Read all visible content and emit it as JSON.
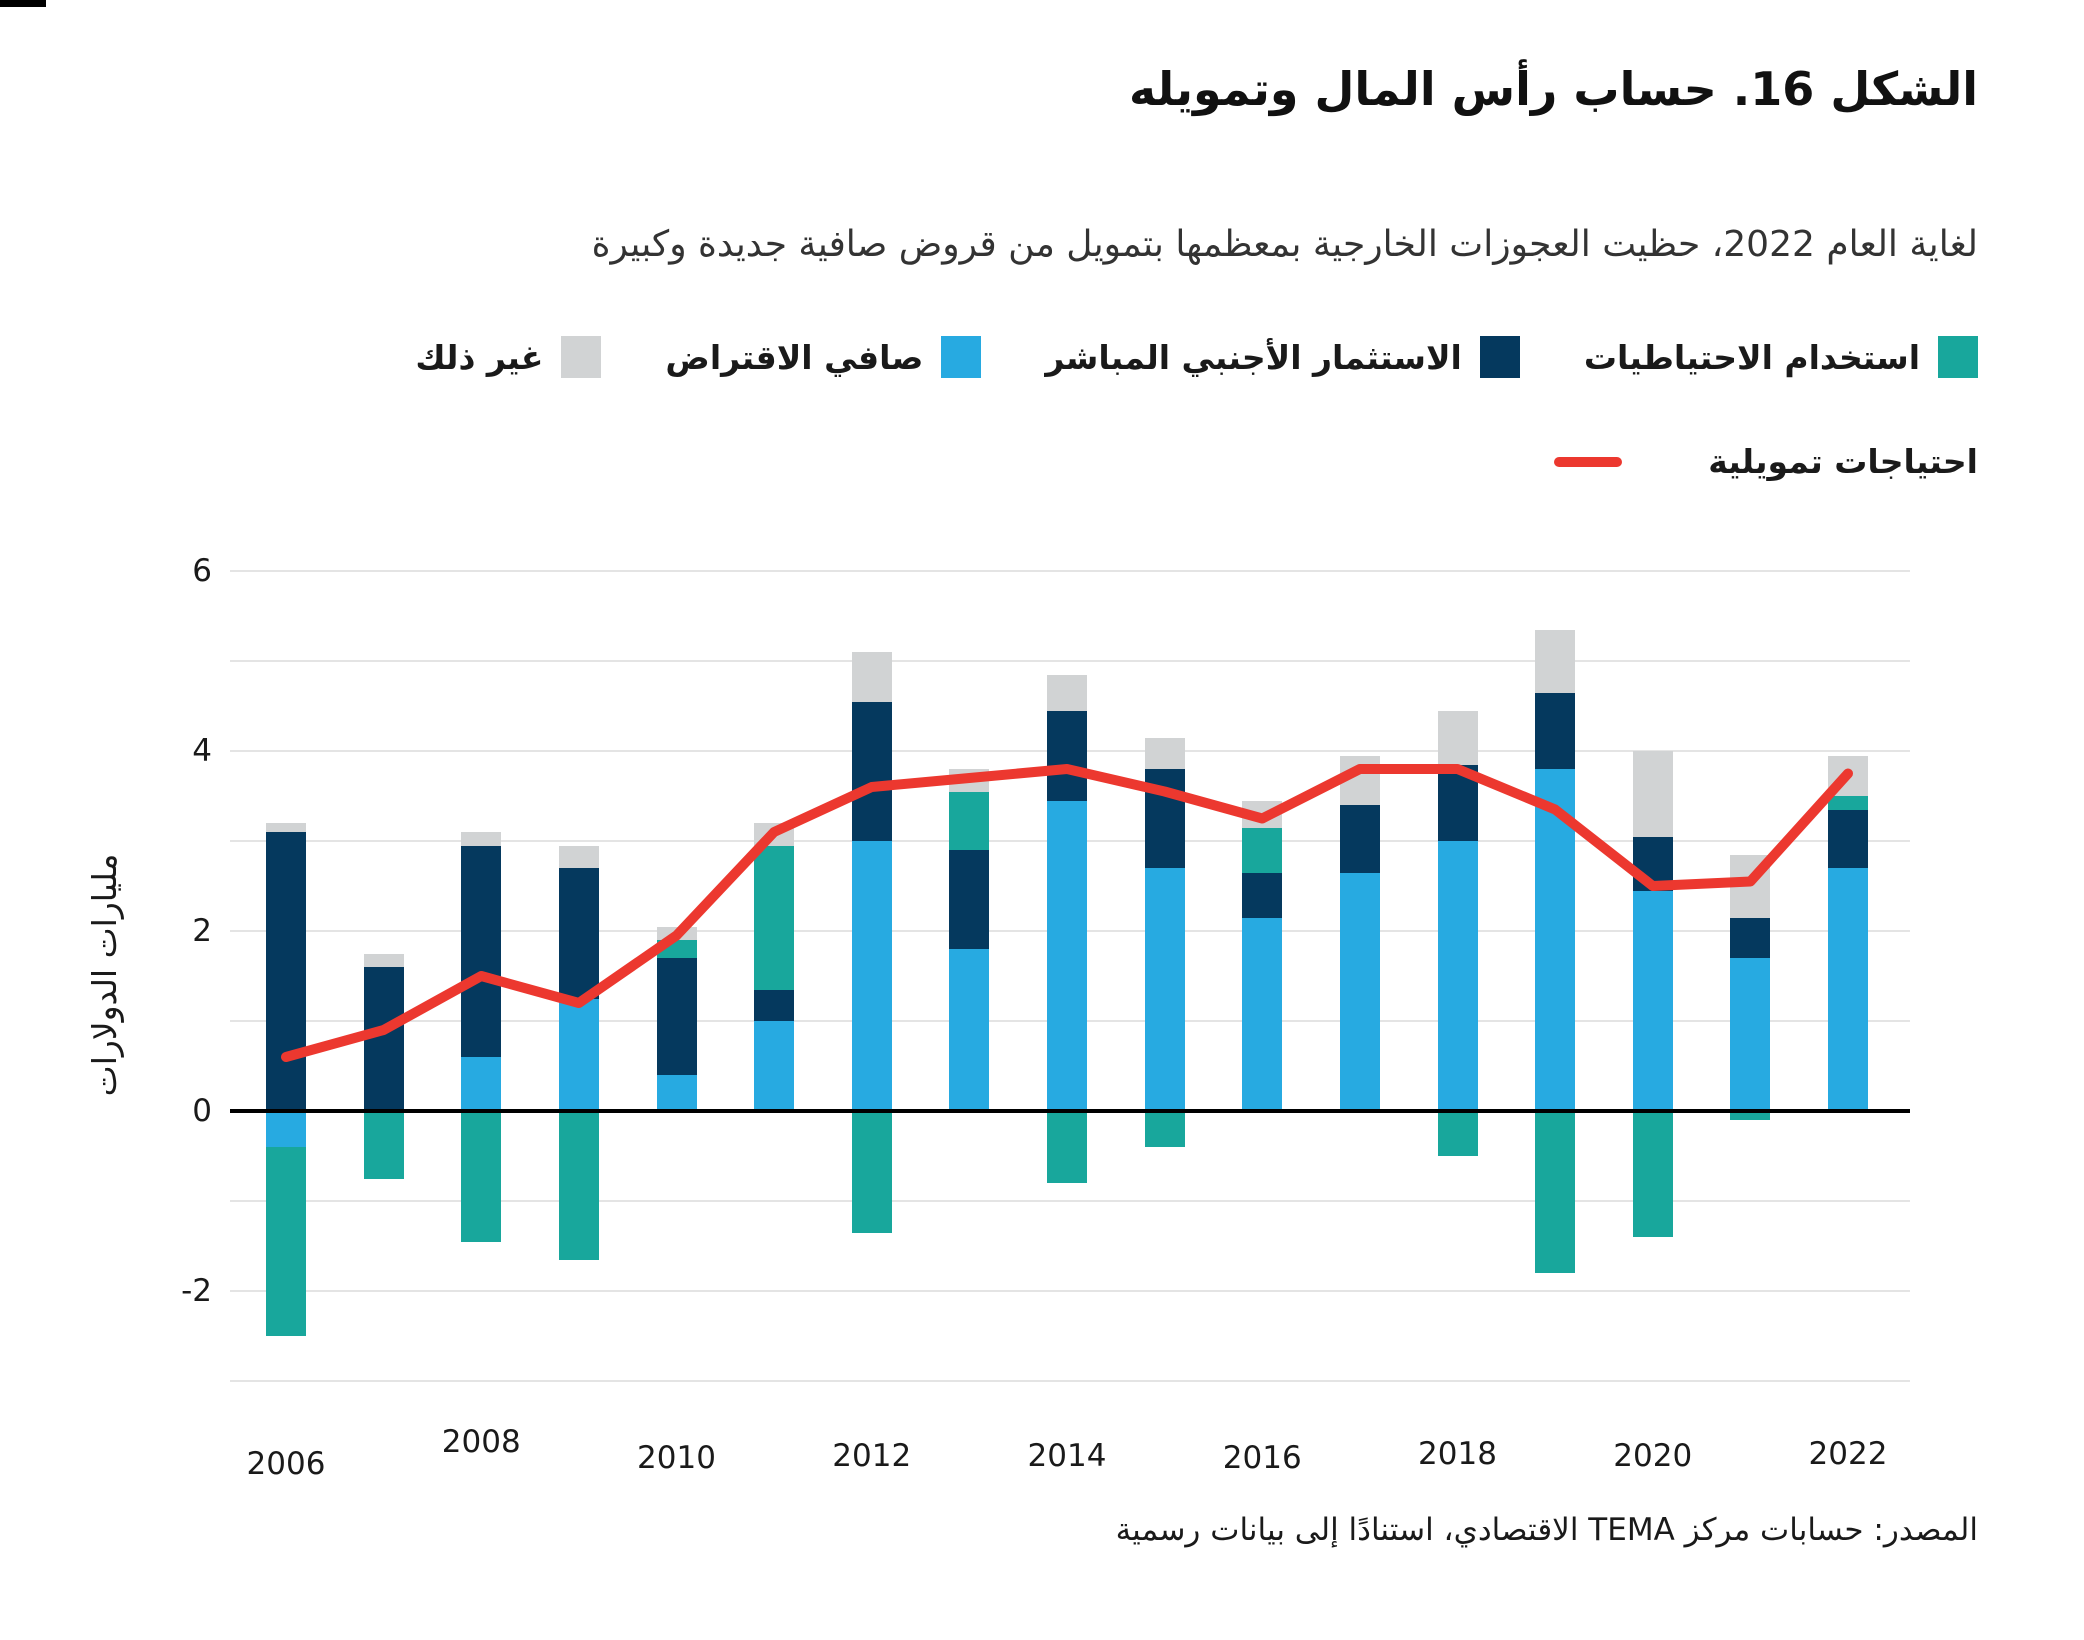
{
  "figure": {
    "title": "الشكل 16. حساب رأس المال وتمويله",
    "subtitle": "لغاية العام 2022، حظيت العجوزات الخارجية بمعظمها بتمويل من قروض صافية جديدة وكبيرة",
    "source": "المصدر: حسابات مركز TEMA الاقتصادي، استنادًا إلى بيانات رسمية"
  },
  "legend": {
    "items": [
      {
        "key": "reserves_use",
        "label": "استخدام الاحتياطيات",
        "color": "#18A79C"
      },
      {
        "key": "fdi",
        "label": "الاستثمار الأجنبي المباشر",
        "color": "#05395E"
      },
      {
        "key": "net_borrowing",
        "label": "صافي الاقتراض",
        "color": "#27AAE1"
      },
      {
        "key": "other",
        "label": "غير ذلك",
        "color": "#D1D3D4"
      }
    ],
    "line_item": {
      "key": "financing_needs",
      "label": "احتياجات تمويلية",
      "color": "#EC382F"
    }
  },
  "chart_data": {
    "type": "bar",
    "subtype": "stacked-bars-with-line",
    "title": "الشكل 16. حساب رأس المال وتمويله",
    "ylabel": "مليارات الدولارات",
    "xlabel": "",
    "ylim": [
      -3,
      6
    ],
    "grid": true,
    "grid_values": [
      6,
      5,
      4,
      3,
      2,
      1,
      -1,
      -2,
      -3
    ],
    "yticks": [
      6,
      4,
      2,
      0,
      -2
    ],
    "categories": [
      2006,
      2007,
      2008,
      2009,
      2010,
      2011,
      2012,
      2013,
      2014,
      2015,
      2016,
      2017,
      2018,
      2019,
      2020,
      2021,
      2022
    ],
    "xticks": [
      {
        "i": 0,
        "label": "2006",
        "dy": 8
      },
      {
        "i": 2,
        "label": "2008",
        "dy": -14
      },
      {
        "i": 4,
        "label": "2010",
        "dy": 2
      },
      {
        "i": 6,
        "label": "2012",
        "dy": 0
      },
      {
        "i": 8,
        "label": "2014",
        "dy": 0
      },
      {
        "i": 10,
        "label": "2016",
        "dy": 2
      },
      {
        "i": 12,
        "label": "2018",
        "dy": -2
      },
      {
        "i": 14,
        "label": "2020",
        "dy": 0
      },
      {
        "i": 16,
        "label": "2022",
        "dy": -2
      }
    ],
    "stack_order_note": "positives stack upward and negatives stack downward in series order",
    "series": [
      {
        "key": "net_borrowing",
        "name": "صافي الاقتراض",
        "color": "#27AAE1",
        "values": [
          -0.4,
          0,
          0.6,
          1.25,
          0.4,
          1.0,
          3.0,
          1.8,
          3.45,
          2.7,
          2.15,
          2.65,
          3.0,
          3.8,
          2.45,
          1.7,
          2.7
        ]
      },
      {
        "key": "fdi",
        "name": "الاستثمار الأجنبي المباشر",
        "color": "#05395E",
        "values": [
          3.1,
          1.6,
          2.35,
          1.45,
          1.3,
          0.35,
          1.55,
          1.1,
          1.0,
          1.1,
          0.5,
          0.75,
          0.85,
          0.85,
          0.6,
          0.45,
          0.65
        ]
      },
      {
        "key": "reserves_use",
        "name": "استخدام الاحتياطيات",
        "color": "#18A79C",
        "values": [
          -2.1,
          -0.75,
          -1.45,
          -1.65,
          0.2,
          1.6,
          -1.35,
          0.65,
          -0.8,
          -0.4,
          0.5,
          0,
          -0.5,
          -1.8,
          -1.4,
          -0.1,
          0.15
        ]
      },
      {
        "key": "other",
        "name": "غير ذلك",
        "color": "#D1D3D4",
        "values": [
          0.1,
          0.15,
          0.15,
          0.25,
          0.15,
          0.25,
          0.55,
          0.25,
          0.4,
          0.35,
          0.3,
          0.55,
          0.6,
          0.7,
          0.95,
          0.7,
          0.45
        ]
      }
    ],
    "line": {
      "key": "financing_needs",
      "name": "احتياجات تمويلية",
      "color": "#EC382F",
      "values": [
        0.6,
        0.9,
        1.5,
        1.2,
        1.95,
        3.1,
        3.6,
        3.7,
        3.8,
        3.55,
        3.25,
        3.8,
        3.8,
        3.35,
        2.5,
        2.55,
        3.75
      ]
    }
  }
}
